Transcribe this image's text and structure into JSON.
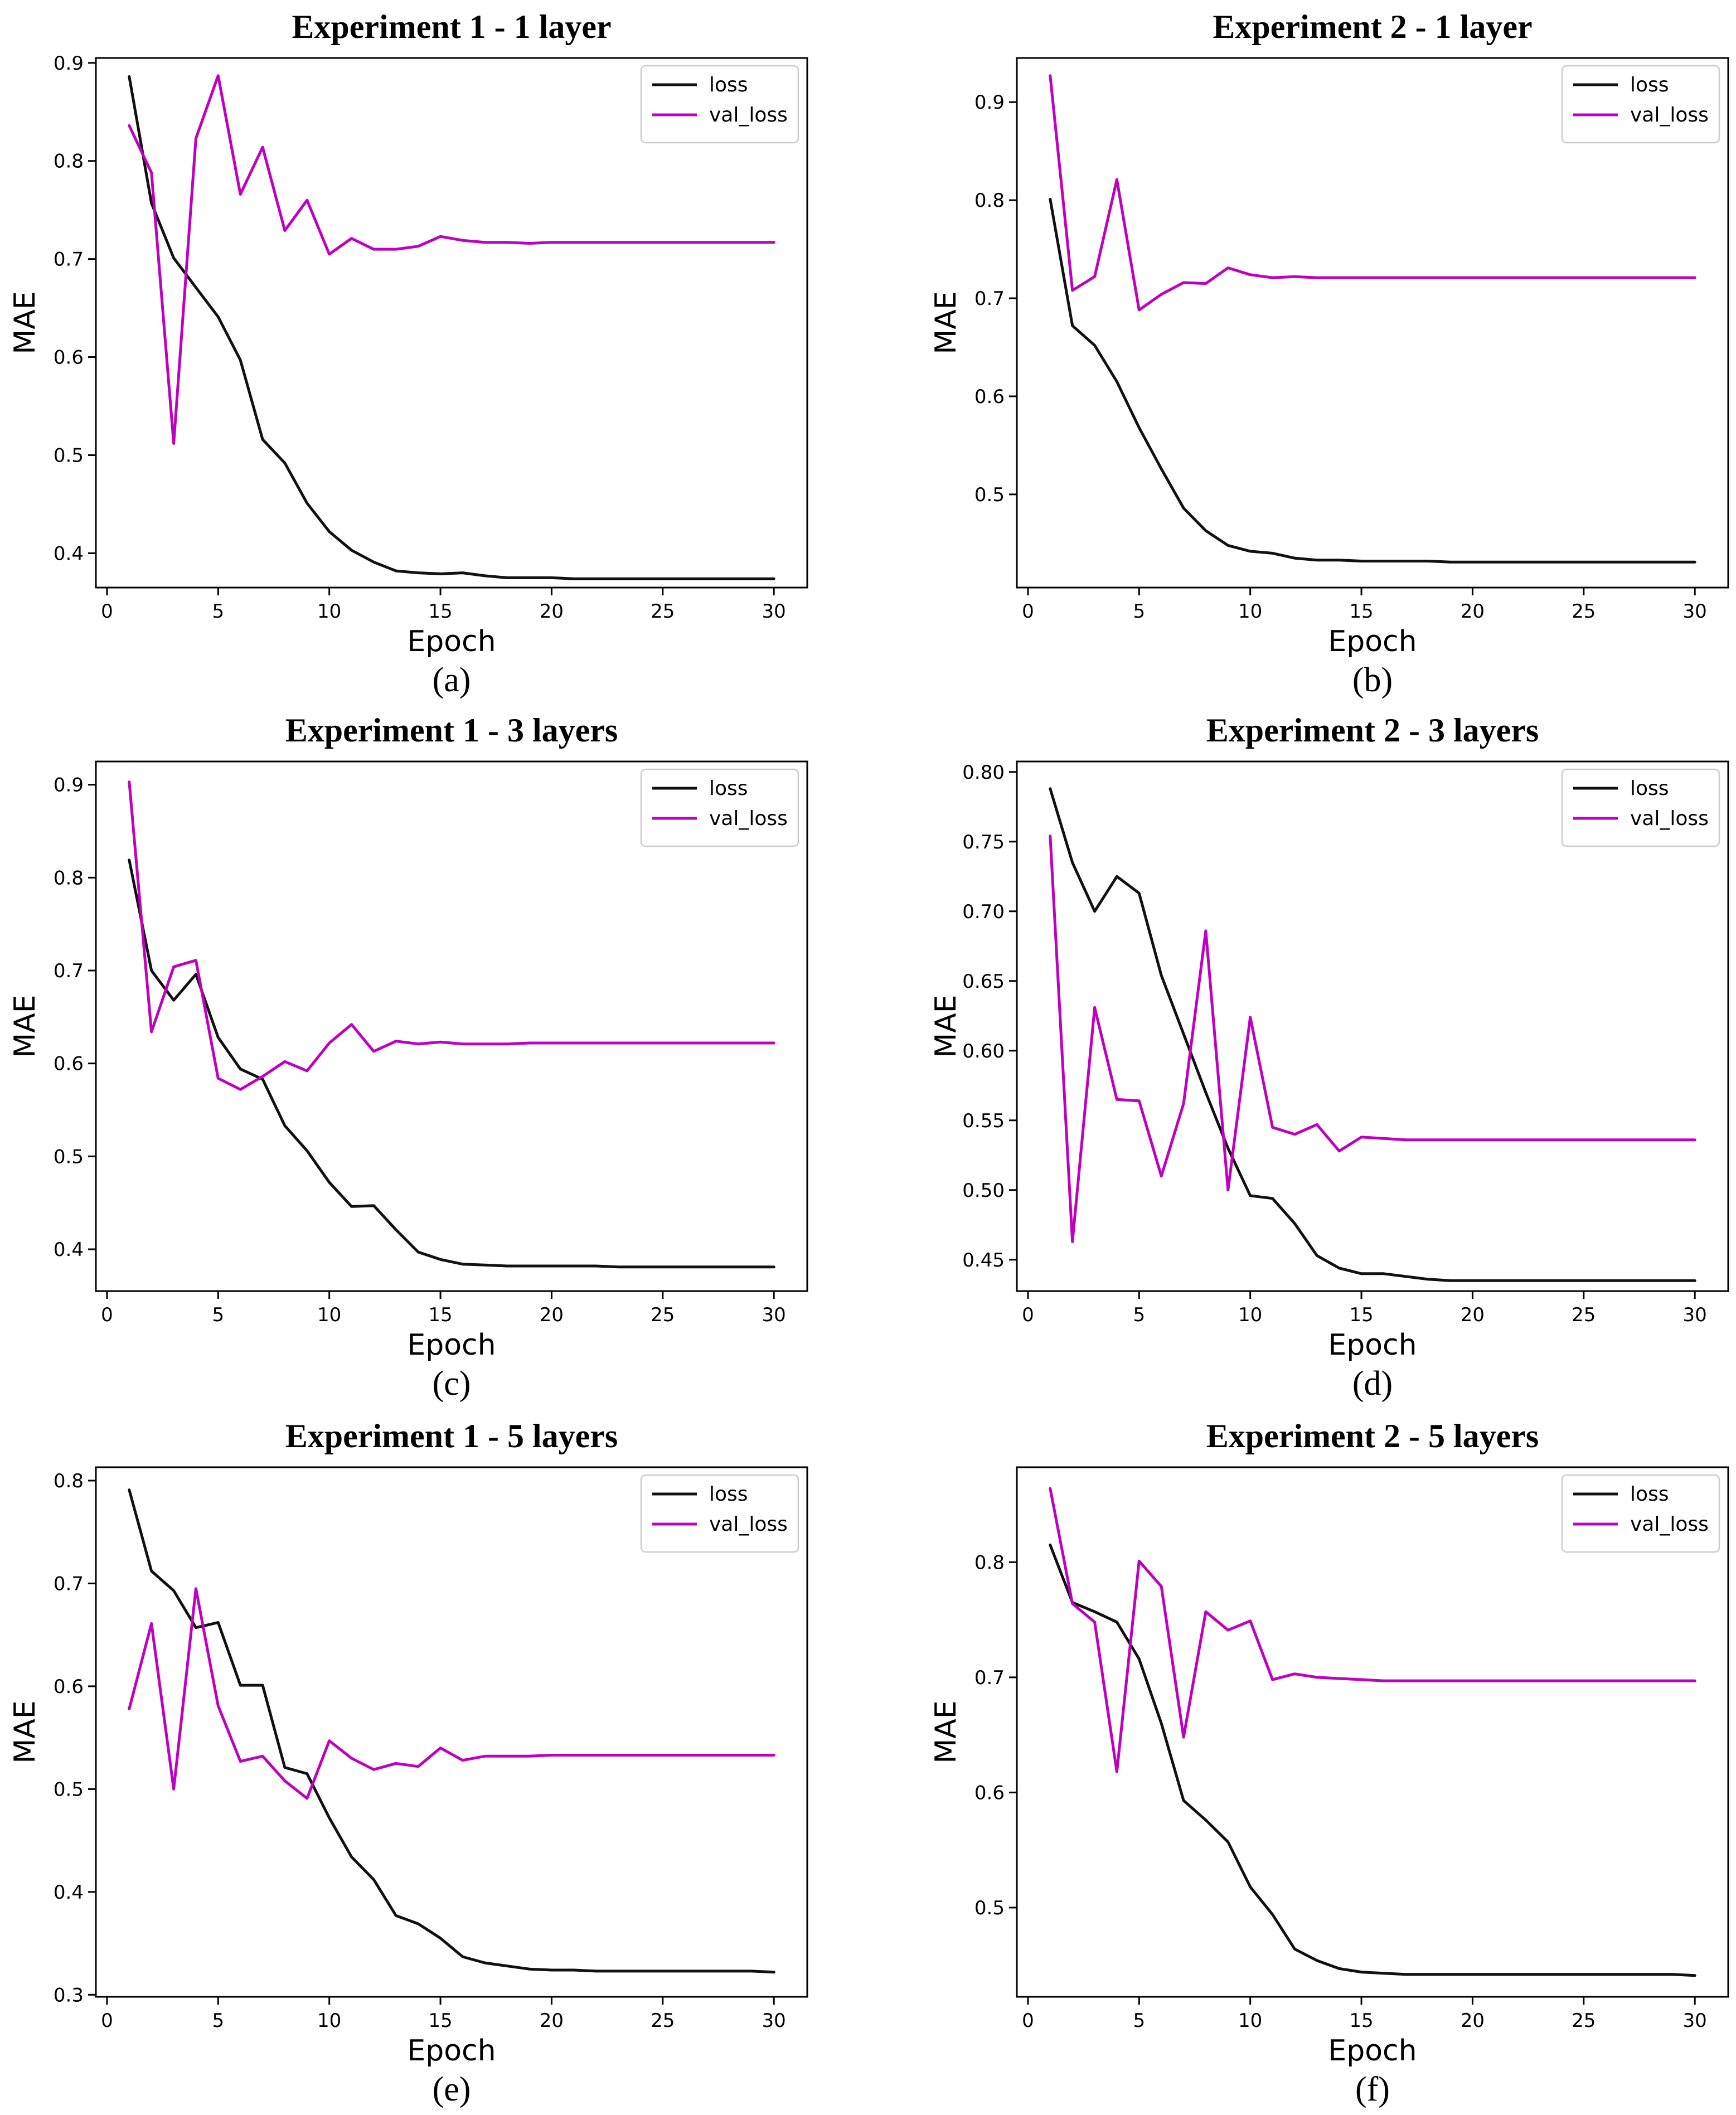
{
  "colors": {
    "loss": "#111111",
    "val_loss": "#c000c0"
  },
  "chart_data": [
    {
      "type": "line",
      "title": "Experiment 1 - 1 layer",
      "caption": "(a)",
      "xlabel": "Epoch",
      "ylabel": "MAE",
      "xlim": [
        -0.5,
        31.5
      ],
      "ylim": [
        0.365,
        0.905
      ],
      "xticks": [
        0,
        5,
        10,
        15,
        20,
        25,
        30
      ],
      "xtick_labels": [
        "0",
        "5",
        "10",
        "15",
        "20",
        "25",
        "30"
      ],
      "yticks": [
        0.4,
        0.5,
        0.6,
        0.7,
        0.8,
        0.9
      ],
      "ytick_labels": [
        "0.4",
        "0.5",
        "0.6",
        "0.7",
        "0.8",
        "0.9"
      ],
      "legend_position": "top-right",
      "x": [
        1,
        2,
        3,
        4,
        5,
        6,
        7,
        8,
        9,
        10,
        11,
        12,
        13,
        14,
        15,
        16,
        17,
        18,
        19,
        20,
        21,
        22,
        23,
        24,
        25,
        26,
        27,
        28,
        29,
        30
      ],
      "series": [
        {
          "name": "loss",
          "color_key": "loss",
          "values": [
            0.886,
            0.757,
            0.701,
            0.671,
            0.641,
            0.597,
            0.516,
            0.492,
            0.451,
            0.422,
            0.403,
            0.391,
            0.382,
            0.38,
            0.379,
            0.38,
            0.377,
            0.375,
            0.375,
            0.375,
            0.374,
            0.374,
            0.374,
            0.374,
            0.374,
            0.374,
            0.374,
            0.374,
            0.374,
            0.374
          ]
        },
        {
          "name": "val_loss",
          "color_key": "val_loss",
          "values": [
            0.836,
            0.788,
            0.512,
            0.823,
            0.887,
            0.766,
            0.814,
            0.729,
            0.76,
            0.705,
            0.721,
            0.71,
            0.71,
            0.713,
            0.723,
            0.719,
            0.717,
            0.717,
            0.716,
            0.717,
            0.717,
            0.717,
            0.717,
            0.717,
            0.717,
            0.717,
            0.717,
            0.717,
            0.717,
            0.717
          ]
        }
      ]
    },
    {
      "type": "line",
      "title": "Experiment 2 - 1 layer",
      "caption": "(b)",
      "xlabel": "Epoch",
      "ylabel": "MAE",
      "xlim": [
        -0.5,
        31.5
      ],
      "ylim": [
        0.405,
        0.945
      ],
      "xticks": [
        0,
        5,
        10,
        15,
        20,
        25,
        30
      ],
      "xtick_labels": [
        "0",
        "5",
        "10",
        "15",
        "20",
        "25",
        "30"
      ],
      "yticks": [
        0.5,
        0.6,
        0.7,
        0.8,
        0.9
      ],
      "ytick_labels": [
        "0.5",
        "0.6",
        "0.7",
        "0.8",
        "0.9"
      ],
      "legend_position": "top-right",
      "x": [
        1,
        2,
        3,
        4,
        5,
        6,
        7,
        8,
        9,
        10,
        11,
        12,
        13,
        14,
        15,
        16,
        17,
        18,
        19,
        20,
        21,
        22,
        23,
        24,
        25,
        26,
        27,
        28,
        29,
        30
      ],
      "series": [
        {
          "name": "loss",
          "color_key": "loss",
          "values": [
            0.801,
            0.672,
            0.652,
            0.615,
            0.568,
            0.526,
            0.486,
            0.463,
            0.448,
            0.442,
            0.44,
            0.435,
            0.433,
            0.433,
            0.432,
            0.432,
            0.432,
            0.432,
            0.431,
            0.431,
            0.431,
            0.431,
            0.431,
            0.431,
            0.431,
            0.431,
            0.431,
            0.431,
            0.431,
            0.431
          ]
        },
        {
          "name": "val_loss",
          "color_key": "val_loss",
          "values": [
            0.927,
            0.708,
            0.722,
            0.821,
            0.688,
            0.704,
            0.716,
            0.715,
            0.731,
            0.724,
            0.721,
            0.722,
            0.721,
            0.721,
            0.721,
            0.721,
            0.721,
            0.721,
            0.721,
            0.721,
            0.721,
            0.721,
            0.721,
            0.721,
            0.721,
            0.721,
            0.721,
            0.721,
            0.721,
            0.721
          ]
        }
      ]
    },
    {
      "type": "line",
      "title": "Experiment 1 - 3 layers",
      "caption": "(c)",
      "xlabel": "Epoch",
      "ylabel": "MAE",
      "xlim": [
        -0.5,
        31.5
      ],
      "ylim": [
        0.355,
        0.925
      ],
      "xticks": [
        0,
        5,
        10,
        15,
        20,
        25,
        30
      ],
      "xtick_labels": [
        "0",
        "5",
        "10",
        "15",
        "20",
        "25",
        "30"
      ],
      "yticks": [
        0.4,
        0.5,
        0.6,
        0.7,
        0.8,
        0.9
      ],
      "ytick_labels": [
        "0.4",
        "0.5",
        "0.6",
        "0.7",
        "0.8",
        "0.9"
      ],
      "legend_position": "top-right",
      "x": [
        1,
        2,
        3,
        4,
        5,
        6,
        7,
        8,
        9,
        10,
        11,
        12,
        13,
        14,
        15,
        16,
        17,
        18,
        19,
        20,
        21,
        22,
        23,
        24,
        25,
        26,
        27,
        28,
        29,
        30
      ],
      "series": [
        {
          "name": "loss",
          "color_key": "loss",
          "values": [
            0.819,
            0.7,
            0.668,
            0.696,
            0.628,
            0.594,
            0.583,
            0.533,
            0.506,
            0.472,
            0.446,
            0.447,
            0.421,
            0.397,
            0.389,
            0.384,
            0.383,
            0.382,
            0.382,
            0.382,
            0.382,
            0.382,
            0.381,
            0.381,
            0.381,
            0.381,
            0.381,
            0.381,
            0.381,
            0.381
          ]
        },
        {
          "name": "val_loss",
          "color_key": "val_loss",
          "values": [
            0.903,
            0.634,
            0.704,
            0.711,
            0.584,
            0.572,
            0.586,
            0.602,
            0.592,
            0.622,
            0.642,
            0.613,
            0.624,
            0.621,
            0.623,
            0.621,
            0.621,
            0.621,
            0.622,
            0.622,
            0.622,
            0.622,
            0.622,
            0.622,
            0.622,
            0.622,
            0.622,
            0.622,
            0.622,
            0.622
          ]
        }
      ]
    },
    {
      "type": "line",
      "title": "Experiment 2 - 3 layers",
      "caption": "(d)",
      "xlabel": "Epoch",
      "ylabel": "MAE",
      "xlim": [
        -0.5,
        31.5
      ],
      "ylim": [
        0.4275,
        0.8075
      ],
      "xticks": [
        0,
        5,
        10,
        15,
        20,
        25,
        30
      ],
      "xtick_labels": [
        "0",
        "5",
        "10",
        "15",
        "20",
        "25",
        "30"
      ],
      "yticks": [
        0.45,
        0.5,
        0.55,
        0.6,
        0.65,
        0.7,
        0.75,
        0.8
      ],
      "ytick_labels": [
        "0.45",
        "0.50",
        "0.55",
        "0.60",
        "0.65",
        "0.70",
        "0.75",
        "0.80"
      ],
      "legend_position": "top-right",
      "x": [
        1,
        2,
        3,
        4,
        5,
        6,
        7,
        8,
        9,
        10,
        11,
        12,
        13,
        14,
        15,
        16,
        17,
        18,
        19,
        20,
        21,
        22,
        23,
        24,
        25,
        26,
        27,
        28,
        29,
        30
      ],
      "series": [
        {
          "name": "loss",
          "color_key": "loss",
          "values": [
            0.788,
            0.735,
            0.7,
            0.725,
            0.713,
            0.654,
            0.612,
            0.57,
            0.53,
            0.496,
            0.494,
            0.476,
            0.453,
            0.444,
            0.44,
            0.44,
            0.438,
            0.436,
            0.435,
            0.435,
            0.435,
            0.435,
            0.435,
            0.435,
            0.435,
            0.435,
            0.435,
            0.435,
            0.435,
            0.435
          ]
        },
        {
          "name": "val_loss",
          "color_key": "val_loss",
          "values": [
            0.754,
            0.463,
            0.631,
            0.565,
            0.564,
            0.51,
            0.562,
            0.686,
            0.5,
            0.624,
            0.545,
            0.54,
            0.547,
            0.528,
            0.538,
            0.537,
            0.536,
            0.536,
            0.536,
            0.536,
            0.536,
            0.536,
            0.536,
            0.536,
            0.536,
            0.536,
            0.536,
            0.536,
            0.536,
            0.536
          ]
        }
      ]
    },
    {
      "type": "line",
      "title": "Experiment 1 - 5 layers",
      "caption": "(e)",
      "xlabel": "Epoch",
      "ylabel": "MAE",
      "xlim": [
        -0.5,
        31.5
      ],
      "ylim": [
        0.298,
        0.813
      ],
      "xticks": [
        0,
        5,
        10,
        15,
        20,
        25,
        30
      ],
      "xtick_labels": [
        "0",
        "5",
        "10",
        "15",
        "20",
        "25",
        "30"
      ],
      "yticks": [
        0.3,
        0.4,
        0.5,
        0.6,
        0.7,
        0.8
      ],
      "ytick_labels": [
        "0.3",
        "0.4",
        "0.5",
        "0.6",
        "0.7",
        "0.8"
      ],
      "legend_position": "top-right",
      "x": [
        1,
        2,
        3,
        4,
        5,
        6,
        7,
        8,
        9,
        10,
        11,
        12,
        13,
        14,
        15,
        16,
        17,
        18,
        19,
        20,
        21,
        22,
        23,
        24,
        25,
        26,
        27,
        28,
        29,
        30
      ],
      "series": [
        {
          "name": "loss",
          "color_key": "loss",
          "values": [
            0.791,
            0.712,
            0.693,
            0.657,
            0.662,
            0.601,
            0.601,
            0.521,
            0.515,
            0.472,
            0.434,
            0.412,
            0.377,
            0.369,
            0.355,
            0.337,
            0.331,
            0.328,
            0.325,
            0.324,
            0.324,
            0.323,
            0.323,
            0.323,
            0.323,
            0.323,
            0.323,
            0.323,
            0.323,
            0.322
          ]
        },
        {
          "name": "val_loss",
          "color_key": "val_loss",
          "values": [
            0.578,
            0.661,
            0.5,
            0.695,
            0.581,
            0.527,
            0.532,
            0.508,
            0.491,
            0.547,
            0.53,
            0.519,
            0.525,
            0.522,
            0.54,
            0.528,
            0.532,
            0.532,
            0.532,
            0.533,
            0.533,
            0.533,
            0.533,
            0.533,
            0.533,
            0.533,
            0.533,
            0.533,
            0.533,
            0.533
          ]
        }
      ]
    },
    {
      "type": "line",
      "title": "Experiment 2 - 5 layers",
      "caption": "(f)",
      "xlabel": "Epoch",
      "ylabel": "MAE",
      "xlim": [
        -0.5,
        31.5
      ],
      "ylim": [
        0.4225,
        0.8825
      ],
      "xticks": [
        0,
        5,
        10,
        15,
        20,
        25,
        30
      ],
      "xtick_labels": [
        "0",
        "5",
        "10",
        "15",
        "20",
        "25",
        "30"
      ],
      "yticks": [
        0.5,
        0.6,
        0.7,
        0.8
      ],
      "ytick_labels": [
        "0.5",
        "0.6",
        "0.7",
        "0.8"
      ],
      "legend_position": "top-right",
      "x": [
        1,
        2,
        3,
        4,
        5,
        6,
        7,
        8,
        9,
        10,
        11,
        12,
        13,
        14,
        15,
        16,
        17,
        18,
        19,
        20,
        21,
        22,
        23,
        24,
        25,
        26,
        27,
        28,
        29,
        30
      ],
      "series": [
        {
          "name": "loss",
          "color_key": "loss",
          "values": [
            0.815,
            0.765,
            0.757,
            0.748,
            0.716,
            0.66,
            0.593,
            0.576,
            0.557,
            0.518,
            0.494,
            0.464,
            0.454,
            0.447,
            0.444,
            0.443,
            0.442,
            0.442,
            0.442,
            0.442,
            0.442,
            0.442,
            0.442,
            0.442,
            0.442,
            0.442,
            0.442,
            0.442,
            0.442,
            0.441
          ]
        },
        {
          "name": "val_loss",
          "color_key": "val_loss",
          "values": [
            0.864,
            0.764,
            0.748,
            0.618,
            0.801,
            0.779,
            0.648,
            0.757,
            0.741,
            0.749,
            0.698,
            0.703,
            0.7,
            0.699,
            0.698,
            0.697,
            0.697,
            0.697,
            0.697,
            0.697,
            0.697,
            0.697,
            0.697,
            0.697,
            0.697,
            0.697,
            0.697,
            0.697,
            0.697,
            0.697
          ]
        }
      ]
    }
  ]
}
